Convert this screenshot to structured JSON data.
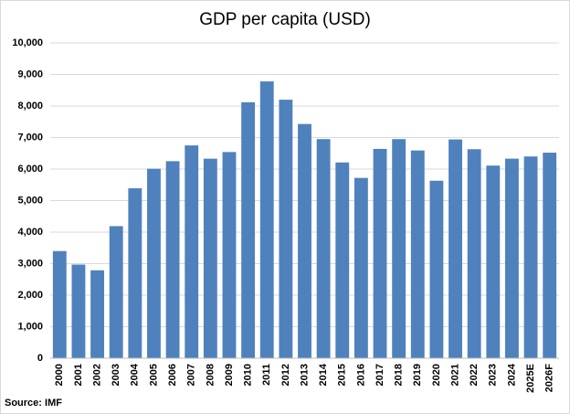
{
  "chart_data": {
    "type": "bar",
    "title": "GDP per capita (USD)",
    "source": "Source: IMF",
    "categories": [
      "2000",
      "2001",
      "2002",
      "2003",
      "2004",
      "2005",
      "2006",
      "2007",
      "2008",
      "2009",
      "2010",
      "2011",
      "2012",
      "2013",
      "2014",
      "2015",
      "2016",
      "2017",
      "2018",
      "2019",
      "2020",
      "2021",
      "2022",
      "2023",
      "2024",
      "2025E",
      "2026F"
    ],
    "values": [
      3400,
      2970,
      2790,
      4190,
      5390,
      6010,
      6250,
      6750,
      6330,
      6540,
      8120,
      8780,
      8200,
      7430,
      6950,
      6210,
      5720,
      6640,
      6950,
      6590,
      5630,
      6940,
      6630,
      6110,
      6330,
      6400,
      6520
    ],
    "color": "#4f81bd",
    "ylim": [
      0,
      10000
    ],
    "yticks": [
      0,
      {
        "value": 1000,
        "label": "1,000"
      },
      {
        "value": 2000,
        "label": "2,000"
      },
      {
        "value": 3000,
        "label": "3,000"
      },
      {
        "value": 4000,
        "label": "4,000"
      },
      {
        "value": 5000,
        "label": "5,000"
      },
      {
        "value": 6000,
        "label": "6,000"
      },
      {
        "value": 7000,
        "label": "7,000"
      },
      {
        "value": 8000,
        "label": "8,000"
      },
      {
        "value": 9000,
        "label": "9,000"
      },
      {
        "value": 10000,
        "label": "10,000"
      }
    ],
    "grid": true
  }
}
